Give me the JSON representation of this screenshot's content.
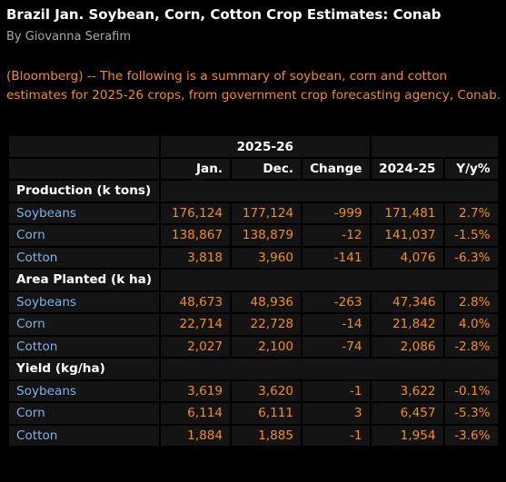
{
  "headline": "Brazil Jan. Soybean, Corn, Cotton Crop Estimates: Conab",
  "byline": "By Giovanna Serafim",
  "summary": "(Bloomberg) -- The following is a summary of soybean, corn and cotton estimates for 2025-26 crops, from government crop forecasting agency, Conab.",
  "colors": {
    "background": "#000000",
    "cell_background": "#141414",
    "accent_orange": "#f28f16",
    "crop_blue": "#7fb2e5",
    "header_white": "#ffffff"
  },
  "table": {
    "group_header": "2025-26",
    "columns": [
      "Jan.",
      "Dec.",
      "Change",
      "2024-25",
      "Y/y%"
    ],
    "sections": [
      {
        "title": "Production (k tons)",
        "rows": [
          {
            "crop": "Soybeans",
            "jan": "176,124",
            "dec": "177,124",
            "change": "-999",
            "prev": "171,481",
            "yy": "2.7%"
          },
          {
            "crop": "Corn",
            "jan": "138,867",
            "dec": "138,879",
            "change": "-12",
            "prev": "141,037",
            "yy": "-1.5%"
          },
          {
            "crop": "Cotton",
            "jan": "3,818",
            "dec": "3,960",
            "change": "-141",
            "prev": "4,076",
            "yy": "-6.3%"
          }
        ]
      },
      {
        "title": "Area Planted (k ha)",
        "rows": [
          {
            "crop": "Soybeans",
            "jan": "48,673",
            "dec": "48,936",
            "change": "-263",
            "prev": "47,346",
            "yy": "2.8%"
          },
          {
            "crop": "Corn",
            "jan": "22,714",
            "dec": "22,728",
            "change": "-14",
            "prev": "21,842",
            "yy": "4.0%"
          },
          {
            "crop": "Cotton",
            "jan": "2,027",
            "dec": "2,100",
            "change": "-74",
            "prev": "2,086",
            "yy": "-2.8%"
          }
        ]
      },
      {
        "title": "Yield (kg/ha)",
        "rows": [
          {
            "crop": "Soybeans",
            "jan": "3,619",
            "dec": "3,620",
            "change": "-1",
            "prev": "3,622",
            "yy": "-0.1%"
          },
          {
            "crop": "Corn",
            "jan": "6,114",
            "dec": "6,111",
            "change": "3",
            "prev": "6,457",
            "yy": "-5.3%"
          },
          {
            "crop": "Cotton",
            "jan": "1,884",
            "dec": "1,885",
            "change": "-1",
            "prev": "1,954",
            "yy": "-3.6%"
          }
        ]
      }
    ]
  }
}
